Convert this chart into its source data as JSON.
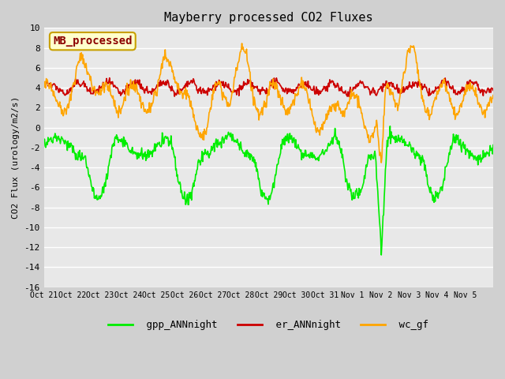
{
  "title": "Mayberry processed CO2 Fluxes",
  "ylabel": "CO2 Flux (urology/m2/s)",
  "ylim": [
    -16,
    10
  ],
  "yticks": [
    10,
    8,
    6,
    4,
    2,
    0,
    -2,
    -4,
    -6,
    -8,
    -10,
    -12,
    -14,
    -16
  ],
  "bg_color": "#e8e8e8",
  "plot_bg": "#e8e8e8",
  "legend_label": "MB_processed",
  "legend_bg": "#ffffcc",
  "legend_border": "#c8a000",
  "legend_text_color": "#8b0000",
  "series": {
    "gpp_ANNnight": {
      "color": "#00ee00",
      "lw": 1.2
    },
    "er_ANNnight": {
      "color": "#cc0000",
      "lw": 1.2
    },
    "wc_gf": {
      "color": "#ffa500",
      "lw": 1.2
    }
  },
  "x_tick_labels": [
    "Oct 21",
    "Oct 22",
    "Oct 23",
    "Oct 24",
    "Oct 25",
    "Oct 26",
    "Oct 27",
    "Oct 28",
    "Oct 29",
    "Oct 30",
    "Oct 31",
    "Nov 1",
    "Nov 2",
    "Nov 3",
    "Nov 4",
    "Nov 5"
  ],
  "seed": 42,
  "n_days": 16,
  "pts_per_day": 48
}
